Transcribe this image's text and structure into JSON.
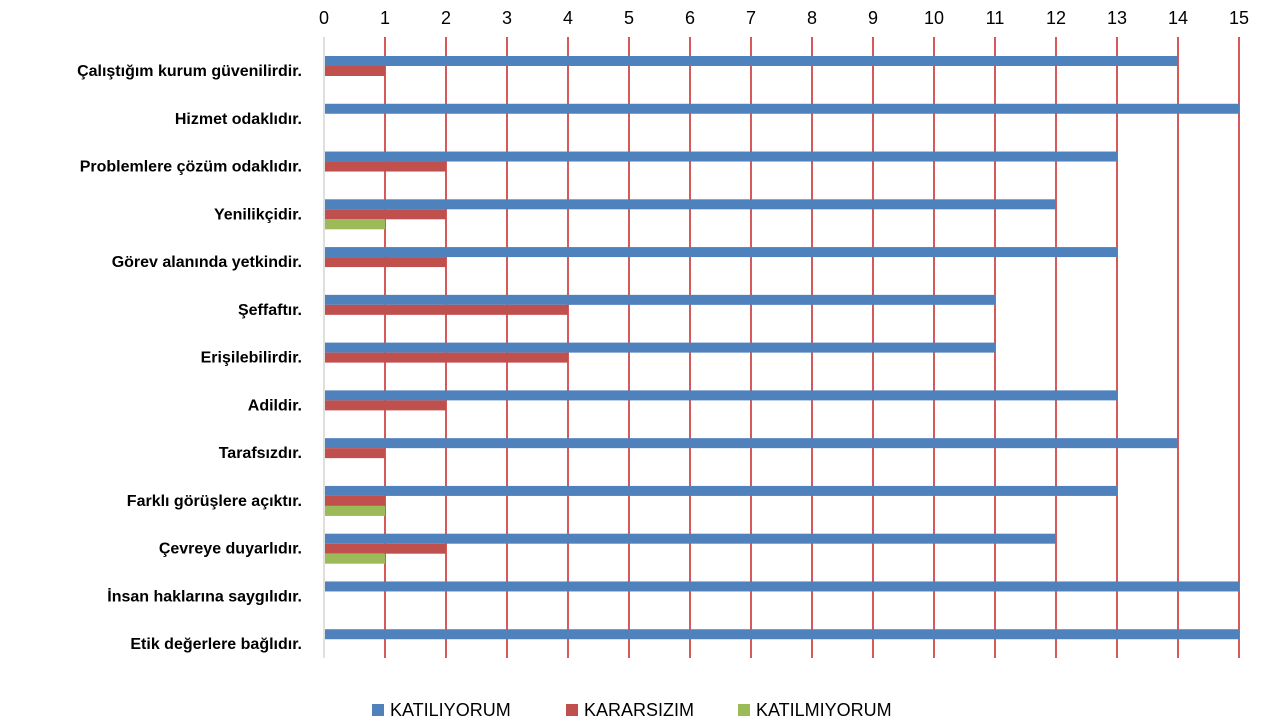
{
  "chart_data": {
    "type": "bar",
    "orientation": "horizontal",
    "categories": [
      "Çalıştığım kurum güvenilirdir.",
      "Hizmet odaklıdır.",
      "Problemlere çözüm odaklıdır.",
      "Yenilikçidir.",
      "Görev alanında yetkindir.",
      "Şeffaftır.",
      "Erişilebilirdir.",
      "Adildir.",
      "Tarafsızdır.",
      "Farklı görüşlere açıktır.",
      "Çevreye duyarlıdır.",
      "İnsan haklarına saygılıdır.",
      "Etik değerlere bağlıdır."
    ],
    "series": [
      {
        "name": "KATILIYORUM",
        "color": "#4F81BD",
        "values": [
          14,
          15,
          13,
          12,
          13,
          11,
          11,
          13,
          14,
          13,
          12,
          15,
          15
        ]
      },
      {
        "name": "KARARSIZIM",
        "color": "#C0504D",
        "values": [
          1,
          0,
          2,
          2,
          2,
          4,
          4,
          2,
          1,
          1,
          2,
          0,
          0
        ]
      },
      {
        "name": "KATILMIYORUM",
        "color": "#9BBB59",
        "values": [
          0,
          0,
          0,
          1,
          0,
          0,
          0,
          0,
          0,
          1,
          1,
          0,
          0
        ]
      }
    ],
    "xlim": [
      0,
      15
    ],
    "xticks": [
      "0",
      "1",
      "2",
      "3",
      "4",
      "5",
      "6",
      "7",
      "8",
      "9",
      "10",
      "11",
      "12",
      "13",
      "14",
      "15"
    ],
    "x_axis_position": "top",
    "gridlines": true,
    "gridline_color": "#C00000",
    "legend_position": "bottom"
  }
}
